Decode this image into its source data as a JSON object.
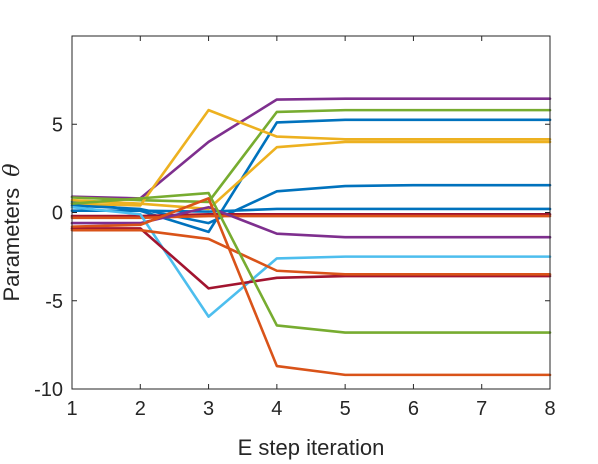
{
  "chart_data": {
    "type": "line",
    "xlabel": "E step iteration",
    "ylabel_text": "Parameters",
    "ylabel_symbol": "θ",
    "xlim": [
      1,
      8
    ],
    "ylim": [
      -10,
      10
    ],
    "xticks": [
      1,
      2,
      3,
      4,
      5,
      6,
      7,
      8
    ],
    "yticks": [
      -10,
      -5,
      0,
      5
    ],
    "grid": false,
    "legend": "none",
    "x": [
      1,
      2,
      3,
      4,
      5,
      6,
      7,
      8
    ],
    "series": [
      {
        "color": "#7E2F8E",
        "values": [
          0.9,
          0.8,
          4.0,
          6.4,
          6.45,
          6.45,
          6.45,
          6.45
        ]
      },
      {
        "color": "#77AC30",
        "values": [
          0.85,
          0.7,
          0.6,
          5.7,
          5.8,
          5.8,
          5.8,
          5.8
        ]
      },
      {
        "color": "#0072BD",
        "values": [
          0.6,
          0.1,
          -1.1,
          5.1,
          5.25,
          5.25,
          5.25,
          5.25
        ]
      },
      {
        "color": "#EDB120",
        "values": [
          0.5,
          0.4,
          5.8,
          4.3,
          4.15,
          4.15,
          4.15,
          4.15
        ]
      },
      {
        "color": "#EDB120",
        "values": [
          0.7,
          0.5,
          0.2,
          3.7,
          4.0,
          4.0,
          4.0,
          4.0
        ]
      },
      {
        "color": "#0072BD",
        "values": [
          0.4,
          0.2,
          -0.6,
          1.2,
          1.5,
          1.55,
          1.55,
          1.55
        ]
      },
      {
        "color": "#0072BD",
        "values": [
          0.1,
          0.1,
          0.05,
          0.2,
          0.2,
          0.2,
          0.2,
          0.2
        ]
      },
      {
        "color": "#A2142F",
        "values": [
          -0.2,
          -0.2,
          -0.1,
          -0.1,
          -0.1,
          -0.1,
          -0.1,
          -0.1
        ]
      },
      {
        "color": "#D95319",
        "values": [
          -0.3,
          -0.3,
          -0.2,
          -0.2,
          -0.2,
          -0.2,
          -0.2,
          -0.2
        ]
      },
      {
        "color": "#7E2F8E",
        "values": [
          -0.6,
          -0.6,
          0.3,
          -1.2,
          -1.4,
          -1.4,
          -1.4,
          -1.4
        ]
      },
      {
        "color": "#4DBEEE",
        "values": [
          0.3,
          -0.1,
          -5.9,
          -2.6,
          -2.5,
          -2.5,
          -2.5,
          -2.5
        ]
      },
      {
        "color": "#A2142F",
        "values": [
          -0.9,
          -0.9,
          -4.3,
          -3.7,
          -3.6,
          -3.6,
          -3.6,
          -3.6
        ]
      },
      {
        "color": "#D95319",
        "values": [
          -1.0,
          -1.0,
          -1.5,
          -3.3,
          -3.5,
          -3.5,
          -3.5,
          -3.5
        ]
      },
      {
        "color": "#77AC30",
        "values": [
          0.5,
          0.8,
          1.1,
          -6.4,
          -6.8,
          -6.8,
          -6.8,
          -6.8
        ]
      },
      {
        "color": "#D95319",
        "values": [
          -0.8,
          -0.7,
          0.8,
          -8.7,
          -9.2,
          -9.2,
          -9.2,
          -9.2
        ]
      }
    ]
  }
}
